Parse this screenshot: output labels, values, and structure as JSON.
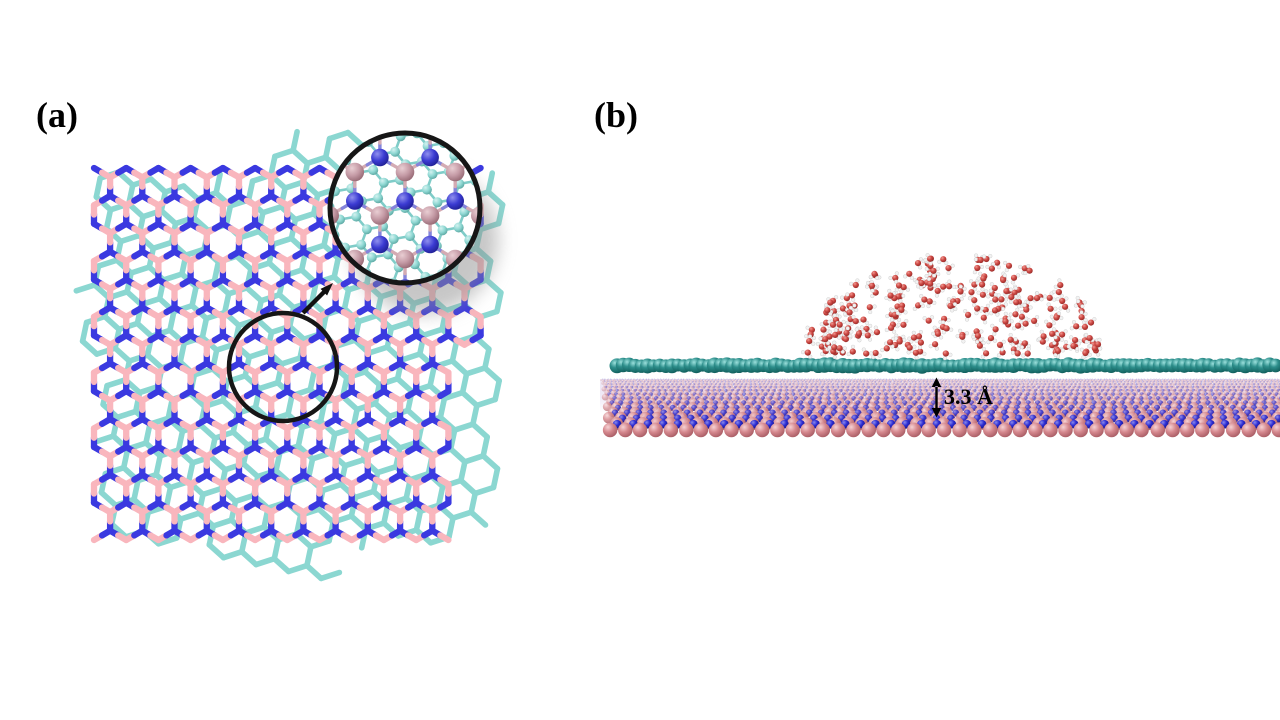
{
  "figure": {
    "background": "#ffffff"
  },
  "panels": {
    "a": {
      "label": "(a)"
    },
    "b": {
      "label": "(b)",
      "gap_label": "3.3 Å"
    }
  },
  "colors": {
    "boron_bond": "#f9b6bd",
    "nitrogen_bond": "#3a39e0",
    "graphene_bond": "#8bd7d1",
    "inset_boron_atom": "#c59ba6",
    "inset_nitrogen_atom": "#3b3bd2",
    "inset_carbon_atom": "#8fd8d3",
    "inset_bn_bond_boron_half": "#d4abb3",
    "inset_bn_bond_nitrogen_half": "#8484da",
    "oxygen_atom": "#cf4a45",
    "hydrogen_atom": "#f2f2f2",
    "water_bond": "#bfbfbf",
    "graphene_side_atom": "#2e8f8c",
    "substrate_boron_atom": "#d5888e",
    "substrate_nitrogen_atom": "#2b2bd2",
    "annotation_color": "#000000",
    "circle_outline": "#161616"
  }
}
